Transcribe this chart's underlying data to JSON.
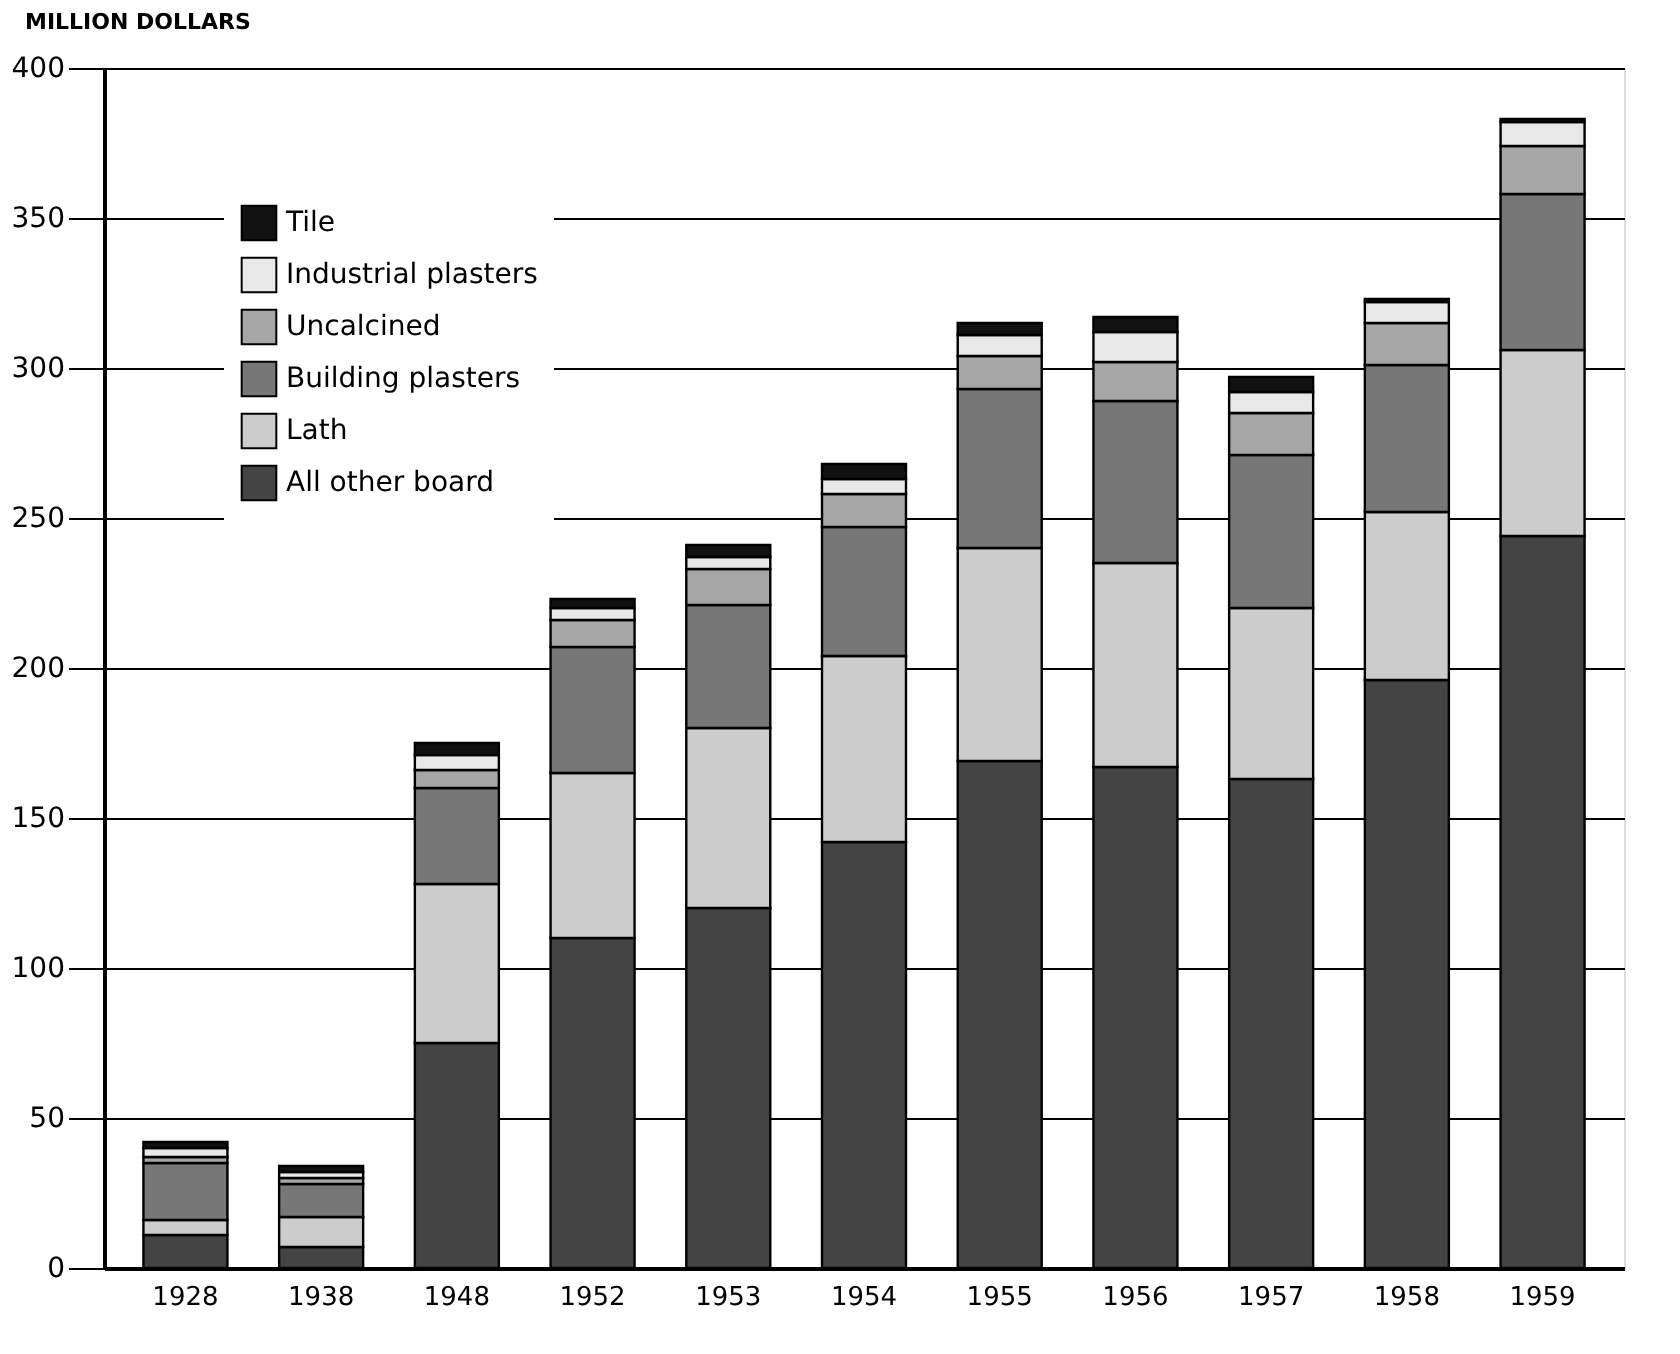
{
  "chart_data": {
    "type": "bar",
    "stacked": true,
    "ylabel": "MILLION DOLLARS",
    "categories": [
      "1928",
      "1938",
      "1948",
      "1952",
      "1953",
      "1954",
      "1955",
      "1956",
      "1957",
      "1958",
      "1959"
    ],
    "series": [
      {
        "name": "All other board",
        "color": "#444444",
        "values": [
          11,
          7,
          75,
          110,
          120,
          142,
          169,
          167,
          163,
          196,
          244
        ]
      },
      {
        "name": "Lath",
        "color": "#cccccc",
        "values": [
          5,
          10,
          53,
          55,
          60,
          62,
          71,
          68,
          57,
          56,
          62
        ]
      },
      {
        "name": "Building plasters",
        "color": "#777777",
        "values": [
          19,
          11,
          32,
          42,
          41,
          43,
          53,
          54,
          51,
          49,
          52
        ]
      },
      {
        "name": "Uncalcined",
        "color": "#a6a6a6",
        "values": [
          2,
          2,
          6,
          9,
          12,
          11,
          11,
          13,
          14,
          14,
          16
        ]
      },
      {
        "name": "Industrial plasters",
        "color": "#e8e8e8",
        "values": [
          3,
          2,
          5,
          4,
          4,
          5,
          7,
          10,
          7,
          7,
          8
        ]
      },
      {
        "name": "Tile",
        "color": "#111111",
        "values": [
          2,
          2,
          4,
          3,
          4,
          5,
          4,
          5,
          5,
          1,
          1
        ]
      }
    ],
    "ylim": [
      0,
      400
    ],
    "yticks": [
      0,
      50,
      100,
      150,
      200,
      250,
      300,
      350,
      400
    ],
    "grid": "y",
    "legend": "top left"
  }
}
